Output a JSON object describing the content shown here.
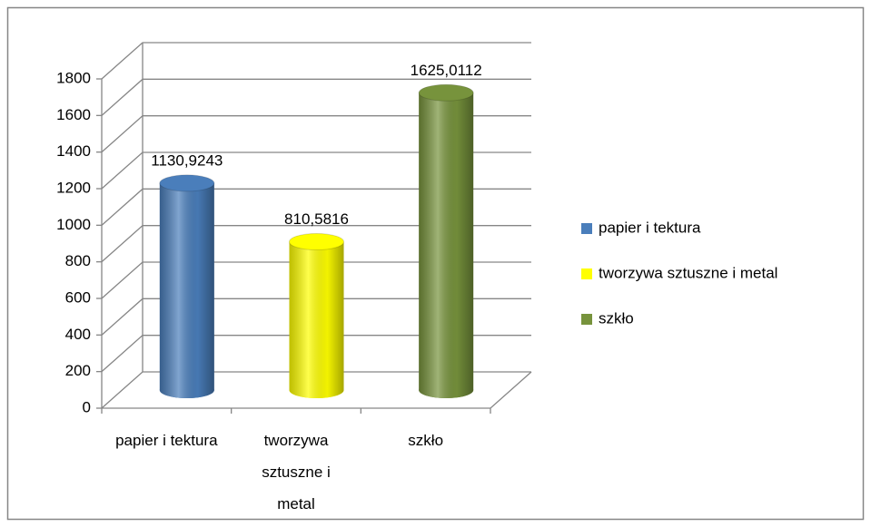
{
  "chart_data": {
    "type": "bar",
    "categories": [
      "papier i tektura",
      "tworzywa sztuszne i metal",
      "szkło"
    ],
    "values": [
      1130.9243,
      810.5816,
      1625.0112
    ],
    "value_labels": [
      "1130,9243",
      "810,5816",
      "1625,0112"
    ],
    "colors": [
      "#4a7ebb",
      "#ffff00",
      "#77933c"
    ],
    "ylim": [
      0,
      1800
    ],
    "yticks": [
      0,
      200,
      400,
      600,
      800,
      1000,
      1200,
      1400,
      1600,
      1800
    ],
    "grid": true,
    "legend": "right"
  }
}
